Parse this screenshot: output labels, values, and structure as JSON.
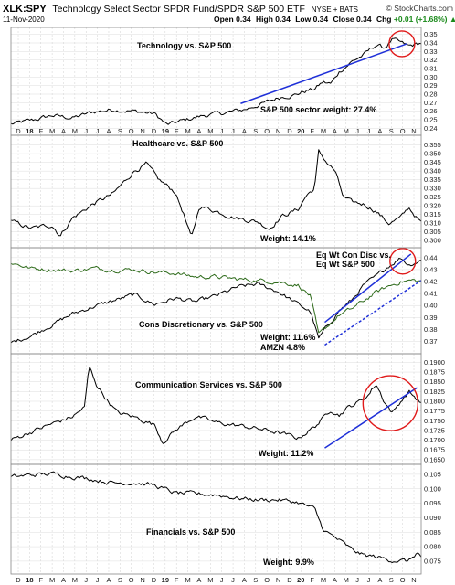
{
  "header": {
    "symbol": "XLK:SPY",
    "description": "Technology Select Sector SPDR Fund/SPDR S&P 500 ETF",
    "exchange": "NYSE + BATS",
    "date": "11-Nov-2020",
    "ohlc": {
      "open_label": "Open",
      "open": "0.34",
      "high_label": "High",
      "high": "0.34",
      "low_label": "Low",
      "low": "0.34",
      "close_label": "Close",
      "close": "0.34",
      "chg_label": "Chg",
      "chg": "+0.01 (+1.68%)",
      "chg_arrow": "▲"
    },
    "brand": "© StockCharts.com",
    "accent_color": "#1a8a1a"
  },
  "chart_data": {
    "type": "line",
    "x_ticks_top": [
      "D",
      "18",
      "F",
      "M",
      "A",
      "M",
      "J",
      "J",
      "A",
      "S",
      "O",
      "N",
      "D",
      "19",
      "F",
      "M",
      "A",
      "M",
      "J",
      "J",
      "A",
      "S",
      "O",
      "N",
      "D",
      "20",
      "F",
      "M",
      "A",
      "M",
      "J",
      "J",
      "A",
      "S",
      "O",
      "N"
    ],
    "x_ticks_bottom": [
      "D",
      "18",
      "F",
      "M",
      "A",
      "M",
      "J",
      "J",
      "A",
      "S",
      "O",
      "N",
      "D",
      "19",
      "F",
      "M",
      "A",
      "M",
      "J",
      "J",
      "A",
      "S",
      "O",
      "N",
      "D",
      "20",
      "F",
      "M",
      "A",
      "M",
      "J",
      "J",
      "A",
      "S",
      "O",
      "N"
    ],
    "bold_ticks": [
      "18",
      "19",
      "20"
    ],
    "panels": [
      {
        "title": "Technology vs. S&P 500",
        "note": "S&P 500 sector weight: 27.4%",
        "ylim": [
          0.235,
          0.355
        ],
        "yticks": [
          "0.24",
          "0.25",
          "0.26",
          "0.27",
          "0.28",
          "0.29",
          "0.30",
          "0.31",
          "0.32",
          "0.33",
          "0.34",
          "0.35"
        ],
        "series": [
          {
            "color": "#000000",
            "anchors": [
              [
                0,
                0.245
              ],
              [
                0.05,
                0.249
              ],
              [
                0.1,
                0.255
              ],
              [
                0.15,
                0.252
              ],
              [
                0.2,
                0.259
              ],
              [
                0.25,
                0.262
              ],
              [
                0.3,
                0.26
              ],
              [
                0.35,
                0.257
              ],
              [
                0.38,
                0.244
              ],
              [
                0.42,
                0.249
              ],
              [
                0.47,
                0.255
              ],
              [
                0.52,
                0.258
              ],
              [
                0.57,
                0.262
              ],
              [
                0.62,
                0.27
              ],
              [
                0.66,
                0.277
              ],
              [
                0.69,
                0.279
              ],
              [
                0.72,
                0.284
              ],
              [
                0.74,
                0.286
              ],
              [
                0.76,
                0.294
              ],
              [
                0.78,
                0.292
              ],
              [
                0.8,
                0.306
              ],
              [
                0.83,
                0.318
              ],
              [
                0.86,
                0.326
              ],
              [
                0.89,
                0.338
              ],
              [
                0.91,
                0.334
              ],
              [
                0.93,
                0.344
              ],
              [
                0.95,
                0.34
              ],
              [
                0.97,
                0.336
              ],
              [
                1.0,
                0.34
              ]
            ]
          }
        ],
        "trendlines": [
          {
            "color": "#1f30d8",
            "x": [
              0.56,
              0.965
            ],
            "y": [
              0.269,
              0.339
            ],
            "dashed": false
          }
        ],
        "circles": [
          {
            "x": 0.953,
            "y": 0.339,
            "r": 14
          }
        ]
      },
      {
        "title": "Healthcare vs. S&P 500",
        "note": "Weight: 14.1%",
        "ylim": [
          0.2975,
          0.359
        ],
        "yticks": [
          "0.300",
          "0.305",
          "0.310",
          "0.315",
          "0.320",
          "0.325",
          "0.330",
          "0.335",
          "0.340",
          "0.345",
          "0.350",
          "0.355"
        ],
        "series": [
          {
            "color": "#000000",
            "anchors": [
              [
                0,
                0.311
              ],
              [
                0.05,
                0.307
              ],
              [
                0.1,
                0.309
              ],
              [
                0.12,
                0.303
              ],
              [
                0.15,
                0.313
              ],
              [
                0.2,
                0.321
              ],
              [
                0.25,
                0.327
              ],
              [
                0.3,
                0.34
              ],
              [
                0.33,
                0.344
              ],
              [
                0.36,
                0.335
              ],
              [
                0.4,
                0.328
              ],
              [
                0.42,
                0.316
              ],
              [
                0.44,
                0.301
              ],
              [
                0.46,
                0.32
              ],
              [
                0.5,
                0.317
              ],
              [
                0.55,
                0.313
              ],
              [
                0.6,
                0.311
              ],
              [
                0.63,
                0.307
              ],
              [
                0.66,
                0.314
              ],
              [
                0.7,
                0.318
              ],
              [
                0.72,
                0.326
              ],
              [
                0.74,
                0.33
              ],
              [
                0.75,
                0.351
              ],
              [
                0.77,
                0.345
              ],
              [
                0.79,
                0.34
              ],
              [
                0.81,
                0.325
              ],
              [
                0.83,
                0.322
              ],
              [
                0.86,
                0.321
              ],
              [
                0.89,
                0.317
              ],
              [
                0.92,
                0.31
              ],
              [
                0.95,
                0.313
              ],
              [
                0.97,
                0.319
              ],
              [
                1.0,
                0.31
              ]
            ]
          }
        ],
        "trendlines": [],
        "circles": []
      },
      {
        "title": "Cons Discretionary vs. S&P 500",
        "note": "Weight: 11.6%",
        "note2": "AMZN 4.8%",
        "legend_text": [
          "Eq Wt Con Disc vs.",
          "Eq Wt S&P 500"
        ],
        "ylim": [
          0.362,
          0.446
        ],
        "yticks": [
          "0.37",
          "0.38",
          "0.39",
          "0.40",
          "0.41",
          "0.42",
          "0.43",
          "0.44"
        ],
        "series": [
          {
            "name": "Cons Discretionary vs. S&P 500",
            "color": "#000000",
            "anchors": [
              [
                0,
                0.369
              ],
              [
                0.05,
                0.375
              ],
              [
                0.1,
                0.384
              ],
              [
                0.15,
                0.393
              ],
              [
                0.2,
                0.399
              ],
              [
                0.25,
                0.404
              ],
              [
                0.3,
                0.409
              ],
              [
                0.35,
                0.401
              ],
              [
                0.4,
                0.406
              ],
              [
                0.45,
                0.403
              ],
              [
                0.5,
                0.408
              ],
              [
                0.55,
                0.415
              ],
              [
                0.6,
                0.418
              ],
              [
                0.65,
                0.412
              ],
              [
                0.7,
                0.401
              ],
              [
                0.73,
                0.395
              ],
              [
                0.75,
                0.372
              ],
              [
                0.77,
                0.382
              ],
              [
                0.8,
                0.396
              ],
              [
                0.83,
                0.404
              ],
              [
                0.86,
                0.417
              ],
              [
                0.89,
                0.424
              ],
              [
                0.92,
                0.433
              ],
              [
                0.95,
                0.44
              ],
              [
                0.97,
                0.434
              ],
              [
                1.0,
                0.438
              ]
            ]
          },
          {
            "name": "Eq Wt Con Disc vs. Eq Wt S&P 500",
            "color": "#2e6b1b",
            "anchors": [
              [
                0,
                0.436
              ],
              [
                0.05,
                0.431
              ],
              [
                0.1,
                0.43
              ],
              [
                0.15,
                0.429
              ],
              [
                0.2,
                0.431
              ],
              [
                0.25,
                0.43
              ],
              [
                0.3,
                0.43
              ],
              [
                0.35,
                0.428
              ],
              [
                0.4,
                0.427
              ],
              [
                0.45,
                0.424
              ],
              [
                0.5,
                0.424
              ],
              [
                0.55,
                0.422
              ],
              [
                0.6,
                0.421
              ],
              [
                0.65,
                0.42
              ],
              [
                0.7,
                0.417
              ],
              [
                0.73,
                0.408
              ],
              [
                0.75,
                0.375
              ],
              [
                0.77,
                0.382
              ],
              [
                0.8,
                0.392
              ],
              [
                0.83,
                0.397
              ],
              [
                0.86,
                0.404
              ],
              [
                0.89,
                0.411
              ],
              [
                0.92,
                0.416
              ],
              [
                0.95,
                0.42
              ],
              [
                0.98,
                0.421
              ],
              [
                1.0,
                0.42
              ]
            ]
          }
        ],
        "trendlines": [
          {
            "color": "#1f30d8",
            "x": [
              0.765,
              0.975
            ],
            "y": [
              0.386,
              0.443
            ],
            "dashed": false
          },
          {
            "color": "#1f30d8",
            "x": [
              0.765,
              1.0
            ],
            "y": [
              0.367,
              0.421
            ],
            "dashed": true
          }
        ],
        "circles": [
          {
            "x": 0.955,
            "y": 0.437,
            "r": 14
          }
        ]
      },
      {
        "title": "Communication Services vs. S&P 500",
        "note": "Weight: 11.2%",
        "ylim": [
          0.1645,
          0.1915
        ],
        "yticks": [
          "0.1650",
          "0.1675",
          "0.1700",
          "0.1725",
          "0.1750",
          "0.1775",
          "0.1800",
          "0.1825",
          "0.1850",
          "0.1875",
          "0.1900"
        ],
        "series": [
          {
            "color": "#000000",
            "anchors": [
              [
                0,
                0.17
              ],
              [
                0.05,
                0.1722
              ],
              [
                0.1,
                0.1742
              ],
              [
                0.15,
                0.176
              ],
              [
                0.18,
                0.1785
              ],
              [
                0.19,
                0.189
              ],
              [
                0.21,
                0.184
              ],
              [
                0.23,
                0.181
              ],
              [
                0.26,
                0.177
              ],
              [
                0.3,
                0.176
              ],
              [
                0.35,
                0.174
              ],
              [
                0.37,
                0.1695
              ],
              [
                0.4,
                0.1725
              ],
              [
                0.45,
                0.1762
              ],
              [
                0.5,
                0.1745
              ],
              [
                0.55,
                0.1738
              ],
              [
                0.6,
                0.173
              ],
              [
                0.65,
                0.172
              ],
              [
                0.7,
                0.1705
              ],
              [
                0.74,
                0.1735
              ],
              [
                0.76,
                0.1755
              ],
              [
                0.78,
                0.178
              ],
              [
                0.8,
                0.1765
              ],
              [
                0.82,
                0.1783
              ],
              [
                0.85,
                0.18
              ],
              [
                0.87,
                0.1815
              ],
              [
                0.89,
                0.1845
              ],
              [
                0.91,
                0.18
              ],
              [
                0.93,
                0.177
              ],
              [
                0.95,
                0.18
              ],
              [
                0.97,
                0.1825
              ],
              [
                1.0,
                0.1795
              ]
            ]
          }
        ],
        "trendlines": [
          {
            "color": "#1f30d8",
            "x": [
              0.765,
              0.99
            ],
            "y": [
              0.168,
              0.1835
            ],
            "dashed": false
          }
        ],
        "circles": [
          {
            "x": 0.925,
            "y": 0.1795,
            "r": 30
          }
        ]
      },
      {
        "title": "Financials vs. S&P 500",
        "note": "Weight: 9.9%",
        "ylim": [
          0.0715,
          0.1075
        ],
        "yticks": [
          "0.075",
          "0.080",
          "0.085",
          "0.090",
          "0.095",
          "0.100",
          "0.105"
        ],
        "series": [
          {
            "color": "#000000",
            "anchors": [
              [
                0,
                0.104
              ],
              [
                0.05,
                0.1048
              ],
              [
                0.1,
                0.1052
              ],
              [
                0.15,
                0.1043
              ],
              [
                0.2,
                0.1033
              ],
              [
                0.25,
                0.102
              ],
              [
                0.3,
                0.1022
              ],
              [
                0.35,
                0.1012
              ],
              [
                0.4,
                0.0985
              ],
              [
                0.45,
                0.0982
              ],
              [
                0.5,
                0.098
              ],
              [
                0.55,
                0.0968
              ],
              [
                0.6,
                0.0962
              ],
              [
                0.65,
                0.0962
              ],
              [
                0.7,
                0.0953
              ],
              [
                0.74,
                0.093
              ],
              [
                0.76,
                0.0862
              ],
              [
                0.78,
                0.084
              ],
              [
                0.8,
                0.0822
              ],
              [
                0.83,
                0.079
              ],
              [
                0.86,
                0.077
              ],
              [
                0.89,
                0.0765
              ],
              [
                0.92,
                0.0755
              ],
              [
                0.95,
                0.0752
              ],
              [
                0.97,
                0.075
              ],
              [
                0.99,
                0.078
              ],
              [
                1.0,
                0.0765
              ]
            ]
          }
        ],
        "trendlines": [],
        "circles": []
      }
    ]
  }
}
